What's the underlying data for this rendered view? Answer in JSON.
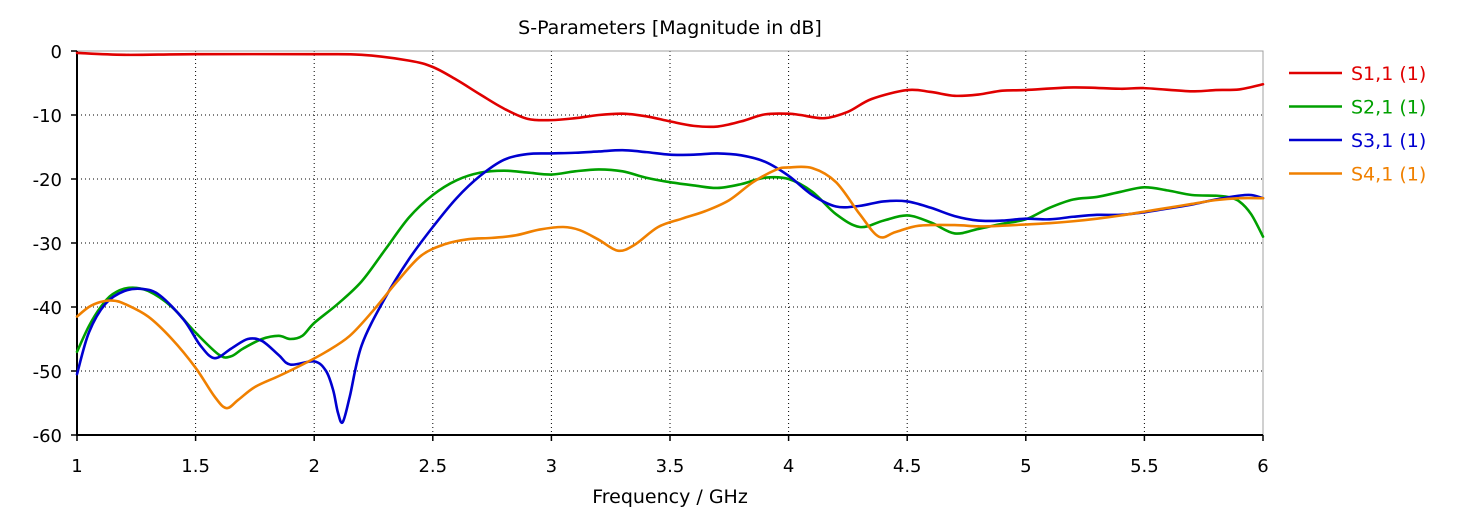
{
  "chart_data": {
    "type": "line",
    "title": "S-Parameters [Magnitude in dB]",
    "xlabel": "Frequency / GHz",
    "ylabel": "",
    "xlim": [
      1,
      6
    ],
    "ylim": [
      -60,
      0
    ],
    "xticks": [
      1,
      1.5,
      2,
      2.5,
      3,
      3.5,
      4,
      4.5,
      5,
      5.5,
      6
    ],
    "xtick_labels": [
      "1",
      "1.5",
      "2",
      "2.5",
      "3",
      "3.5",
      "4",
      "4.5",
      "5",
      "5.5",
      "6"
    ],
    "yticks": [
      0,
      -10,
      -20,
      -30,
      -40,
      -50,
      -60
    ],
    "ytick_labels": [
      "0",
      "-10",
      "-20",
      "-30",
      "-40",
      "-50",
      "-60"
    ],
    "grid": true,
    "legend_position": "right",
    "series": [
      {
        "name": "S1,1 (1)",
        "color": "#e00000",
        "points": [
          [
            1,
            -0.3
          ],
          [
            1.2,
            -0.6
          ],
          [
            1.5,
            -0.5
          ],
          [
            2,
            -0.5
          ],
          [
            2.2,
            -0.6
          ],
          [
            2.4,
            -1.5
          ],
          [
            2.5,
            -2.5
          ],
          [
            2.6,
            -4.5
          ],
          [
            2.7,
            -6.8
          ],
          [
            2.8,
            -9
          ],
          [
            2.9,
            -10.6
          ],
          [
            3,
            -10.8
          ],
          [
            3.1,
            -10.5
          ],
          [
            3.2,
            -10
          ],
          [
            3.3,
            -9.8
          ],
          [
            3.4,
            -10.2
          ],
          [
            3.5,
            -11
          ],
          [
            3.6,
            -11.7
          ],
          [
            3.7,
            -11.8
          ],
          [
            3.8,
            -11
          ],
          [
            3.9,
            -9.9
          ],
          [
            4,
            -9.8
          ],
          [
            4.05,
            -10
          ],
          [
            4.15,
            -10.5
          ],
          [
            4.25,
            -9.5
          ],
          [
            4.35,
            -7.5
          ],
          [
            4.5,
            -6.1
          ],
          [
            4.6,
            -6.4
          ],
          [
            4.7,
            -7
          ],
          [
            4.8,
            -6.8
          ],
          [
            4.9,
            -6.2
          ],
          [
            5,
            -6.1
          ],
          [
            5.2,
            -5.7
          ],
          [
            5.4,
            -5.9
          ],
          [
            5.5,
            -5.8
          ],
          [
            5.7,
            -6.3
          ],
          [
            5.8,
            -6.1
          ],
          [
            5.9,
            -6
          ],
          [
            6,
            -5.2
          ]
        ]
      },
      {
        "name": "S2,1 (1)",
        "color": "#00a000",
        "points": [
          [
            1,
            -47
          ],
          [
            1.05,
            -43
          ],
          [
            1.1,
            -40
          ],
          [
            1.15,
            -38
          ],
          [
            1.22,
            -37
          ],
          [
            1.3,
            -37.5
          ],
          [
            1.4,
            -40
          ],
          [
            1.5,
            -44
          ],
          [
            1.6,
            -47.5
          ],
          [
            1.65,
            -47.7
          ],
          [
            1.7,
            -46.5
          ],
          [
            1.78,
            -45
          ],
          [
            1.85,
            -44.5
          ],
          [
            1.9,
            -45
          ],
          [
            1.95,
            -44.5
          ],
          [
            2,
            -42.5
          ],
          [
            2.1,
            -39.5
          ],
          [
            2.2,
            -36
          ],
          [
            2.3,
            -31
          ],
          [
            2.4,
            -26
          ],
          [
            2.5,
            -22.5
          ],
          [
            2.6,
            -20.2
          ],
          [
            2.7,
            -19
          ],
          [
            2.8,
            -18.7
          ],
          [
            2.9,
            -19
          ],
          [
            3,
            -19.3
          ],
          [
            3.1,
            -18.8
          ],
          [
            3.2,
            -18.5
          ],
          [
            3.3,
            -18.8
          ],
          [
            3.4,
            -19.8
          ],
          [
            3.5,
            -20.5
          ],
          [
            3.6,
            -21
          ],
          [
            3.7,
            -21.4
          ],
          [
            3.8,
            -20.8
          ],
          [
            3.9,
            -19.8
          ],
          [
            4,
            -20
          ],
          [
            4.1,
            -22
          ],
          [
            4.2,
            -25.5
          ],
          [
            4.3,
            -27.5
          ],
          [
            4.4,
            -26.5
          ],
          [
            4.5,
            -25.7
          ],
          [
            4.6,
            -26.8
          ],
          [
            4.7,
            -28.5
          ],
          [
            4.8,
            -27.8
          ],
          [
            4.9,
            -27
          ],
          [
            5,
            -26.3
          ],
          [
            5.1,
            -24.5
          ],
          [
            5.2,
            -23.2
          ],
          [
            5.3,
            -22.8
          ],
          [
            5.4,
            -22
          ],
          [
            5.5,
            -21.3
          ],
          [
            5.6,
            -21.8
          ],
          [
            5.7,
            -22.5
          ],
          [
            5.8,
            -22.6
          ],
          [
            5.85,
            -22.8
          ],
          [
            5.9,
            -23.5
          ],
          [
            5.95,
            -25.5
          ],
          [
            6,
            -29
          ]
        ]
      },
      {
        "name": "S3,1 (1)",
        "color": "#0000d0",
        "points": [
          [
            1,
            -50.5
          ],
          [
            1.05,
            -44
          ],
          [
            1.12,
            -39.5
          ],
          [
            1.2,
            -37.5
          ],
          [
            1.28,
            -37.2
          ],
          [
            1.35,
            -38.2
          ],
          [
            1.45,
            -42
          ],
          [
            1.52,
            -46
          ],
          [
            1.58,
            -48
          ],
          [
            1.65,
            -46.5
          ],
          [
            1.72,
            -45
          ],
          [
            1.78,
            -45.3
          ],
          [
            1.85,
            -47.5
          ],
          [
            1.9,
            -49
          ],
          [
            2,
            -48.5
          ],
          [
            2.05,
            -50
          ],
          [
            2.08,
            -53
          ],
          [
            2.1,
            -56.5
          ],
          [
            2.12,
            -58
          ],
          [
            2.15,
            -54
          ],
          [
            2.2,
            -46
          ],
          [
            2.3,
            -38.5
          ],
          [
            2.4,
            -32.5
          ],
          [
            2.5,
            -27.5
          ],
          [
            2.6,
            -23
          ],
          [
            2.7,
            -19.5
          ],
          [
            2.8,
            -17
          ],
          [
            2.9,
            -16.1
          ],
          [
            3,
            -16
          ],
          [
            3.1,
            -15.9
          ],
          [
            3.2,
            -15.7
          ],
          [
            3.3,
            -15.5
          ],
          [
            3.4,
            -15.8
          ],
          [
            3.5,
            -16.2
          ],
          [
            3.6,
            -16.2
          ],
          [
            3.7,
            -16
          ],
          [
            3.8,
            -16.3
          ],
          [
            3.9,
            -17.3
          ],
          [
            4,
            -19.5
          ],
          [
            4.1,
            -22.5
          ],
          [
            4.2,
            -24.3
          ],
          [
            4.3,
            -24.2
          ],
          [
            4.4,
            -23.5
          ],
          [
            4.5,
            -23.5
          ],
          [
            4.6,
            -24.5
          ],
          [
            4.7,
            -25.8
          ],
          [
            4.8,
            -26.5
          ],
          [
            4.9,
            -26.5
          ],
          [
            5,
            -26.2
          ],
          [
            5.1,
            -26.3
          ],
          [
            5.2,
            -25.9
          ],
          [
            5.3,
            -25.6
          ],
          [
            5.4,
            -25.6
          ],
          [
            5.5,
            -25.2
          ],
          [
            5.6,
            -24.6
          ],
          [
            5.7,
            -24
          ],
          [
            5.8,
            -23.2
          ],
          [
            5.9,
            -22.6
          ],
          [
            5.95,
            -22.5
          ],
          [
            6,
            -23
          ]
        ]
      },
      {
        "name": "S4,1 (1)",
        "color": "#f08000",
        "points": [
          [
            1,
            -41.5
          ],
          [
            1.05,
            -40
          ],
          [
            1.1,
            -39.2
          ],
          [
            1.15,
            -39
          ],
          [
            1.2,
            -39.5
          ],
          [
            1.3,
            -41.5
          ],
          [
            1.4,
            -45
          ],
          [
            1.5,
            -49.5
          ],
          [
            1.58,
            -54
          ],
          [
            1.63,
            -55.8
          ],
          [
            1.68,
            -54.5
          ],
          [
            1.75,
            -52.5
          ],
          [
            1.85,
            -50.8
          ],
          [
            1.95,
            -49
          ],
          [
            2.05,
            -47
          ],
          [
            2.15,
            -44.5
          ],
          [
            2.25,
            -40.5
          ],
          [
            2.35,
            -36
          ],
          [
            2.45,
            -32
          ],
          [
            2.55,
            -30.2
          ],
          [
            2.65,
            -29.4
          ],
          [
            2.75,
            -29.2
          ],
          [
            2.85,
            -28.8
          ],
          [
            2.95,
            -27.9
          ],
          [
            3.05,
            -27.5
          ],
          [
            3.12,
            -28
          ],
          [
            3.2,
            -29.5
          ],
          [
            3.28,
            -31.2
          ],
          [
            3.35,
            -30.3
          ],
          [
            3.45,
            -27.5
          ],
          [
            3.55,
            -26.2
          ],
          [
            3.65,
            -25
          ],
          [
            3.75,
            -23.3
          ],
          [
            3.85,
            -20.5
          ],
          [
            3.95,
            -18.5
          ],
          [
            4,
            -18.2
          ],
          [
            4.1,
            -18.3
          ],
          [
            4.2,
            -20.5
          ],
          [
            4.3,
            -25.5
          ],
          [
            4.38,
            -29
          ],
          [
            4.45,
            -28.3
          ],
          [
            4.55,
            -27.3
          ],
          [
            4.7,
            -27.2
          ],
          [
            4.8,
            -27.4
          ],
          [
            4.9,
            -27.3
          ],
          [
            5,
            -27.1
          ],
          [
            5.1,
            -26.9
          ],
          [
            5.2,
            -26.6
          ],
          [
            5.3,
            -26.2
          ],
          [
            5.4,
            -25.7
          ],
          [
            5.5,
            -25.1
          ],
          [
            5.6,
            -24.5
          ],
          [
            5.7,
            -23.9
          ],
          [
            5.8,
            -23.3
          ],
          [
            5.9,
            -23
          ],
          [
            6,
            -23
          ]
        ]
      }
    ]
  }
}
